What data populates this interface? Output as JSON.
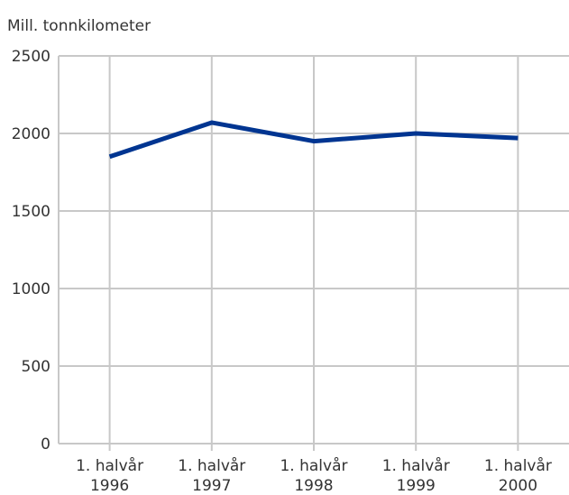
{
  "chart_data": {
    "type": "line",
    "y_axis_label": "Mill. tonnkilometer",
    "categories": [
      "1. halvår\n1996",
      "1. halvår\n1997",
      "1. halvår\n1998",
      "1. halvår\n1999",
      "1. halvår\n2000"
    ],
    "values": [
      1850,
      2070,
      1950,
      2000,
      1970
    ],
    "color": "#003591",
    "ylim": [
      0,
      2500
    ],
    "yticks": [
      0,
      500,
      1000,
      1500,
      2000,
      2500
    ],
    "grid": true
  }
}
